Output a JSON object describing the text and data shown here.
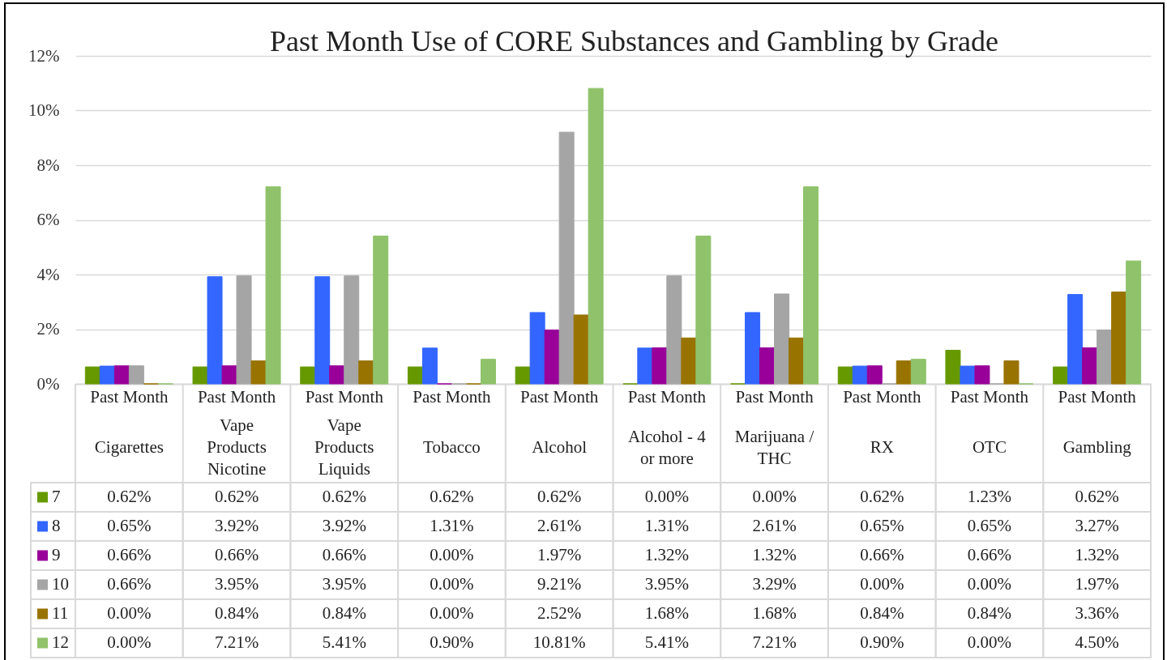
{
  "chart_data": {
    "type": "bar",
    "title": "Past Month Use of CORE Substances and Gambling by Grade",
    "categories": [
      "Past Month\nCigarettes",
      "Past Month\nVape Products Nicotine",
      "Past Month\nVape Products Liquids",
      "Past Month\nTobacco",
      "Past Month\nAlcohol",
      "Past Month\nAlcohol - 4 or more",
      "Past Month\nMarijuana / THC",
      "Past Month\nRX",
      "Past Month\nOTC",
      "Past Month\nGambling"
    ],
    "series": [
      {
        "name": "7",
        "color": "#669900",
        "values": [
          0.62,
          0.62,
          0.62,
          0.62,
          0.62,
          0,
          0,
          0.62,
          1.23,
          0.62
        ],
        "value_labels": [
          "0.62%",
          "0.62%",
          "0.62%",
          "0.62%",
          "0.62%",
          "0.00%",
          "0.00%",
          "0.62%",
          "1.23%",
          "0.62%"
        ]
      },
      {
        "name": "8",
        "color": "#3366ff",
        "values": [
          0.65,
          3.92,
          3.92,
          1.31,
          2.61,
          1.31,
          2.61,
          0.65,
          0.65,
          3.27
        ],
        "value_labels": [
          "0.65%",
          "3.92%",
          "3.92%",
          "1.31%",
          "2.61%",
          "1.31%",
          "2.61%",
          "0.65%",
          "0.65%",
          "3.27%"
        ]
      },
      {
        "name": "9",
        "color": "#990099",
        "values": [
          0.66,
          0.66,
          0.66,
          0,
          1.97,
          1.32,
          1.32,
          0.66,
          0.66,
          1.32
        ],
        "value_labels": [
          "0.66%",
          "0.66%",
          "0.66%",
          "0.00%",
          "1.97%",
          "1.32%",
          "1.32%",
          "0.66%",
          "0.66%",
          "1.32%"
        ]
      },
      {
        "name": "10",
        "color": "#a5a5a5",
        "values": [
          0.66,
          3.95,
          3.95,
          0,
          9.21,
          3.95,
          3.29,
          0,
          0,
          1.97
        ],
        "value_labels": [
          "0.66%",
          "3.95%",
          "3.95%",
          "0.00%",
          "9.21%",
          "3.95%",
          "3.29%",
          "0.00%",
          "0.00%",
          "1.97%"
        ]
      },
      {
        "name": "11",
        "color": "#997300",
        "values": [
          0,
          0.84,
          0.84,
          0,
          2.52,
          1.68,
          1.68,
          0.84,
          0.84,
          3.36
        ],
        "value_labels": [
          "0.00%",
          "0.84%",
          "0.84%",
          "0.00%",
          "2.52%",
          "1.68%",
          "1.68%",
          "0.84%",
          "0.84%",
          "3.36%"
        ]
      },
      {
        "name": "12",
        "color": "#8fc26a",
        "values": [
          0,
          7.21,
          5.41,
          0.9,
          10.81,
          5.41,
          7.21,
          0.9,
          0,
          4.5
        ],
        "value_labels": [
          "0.00%",
          "7.21%",
          "5.41%",
          "0.90%",
          "10.81%",
          "5.41%",
          "7.21%",
          "0.90%",
          "0.00%",
          "4.50%"
        ]
      }
    ],
    "ylim": [
      0,
      12
    ],
    "yticks": [
      {
        "value": 0,
        "label": "0%"
      },
      {
        "value": 2,
        "label": "2%"
      },
      {
        "value": 4,
        "label": "4%"
      },
      {
        "value": 6,
        "label": "6%"
      },
      {
        "value": 8,
        "label": "8%"
      },
      {
        "value": 10,
        "label": "10%"
      },
      {
        "value": 12,
        "label": "12%"
      }
    ],
    "grid": "y",
    "legend": "bottom"
  }
}
